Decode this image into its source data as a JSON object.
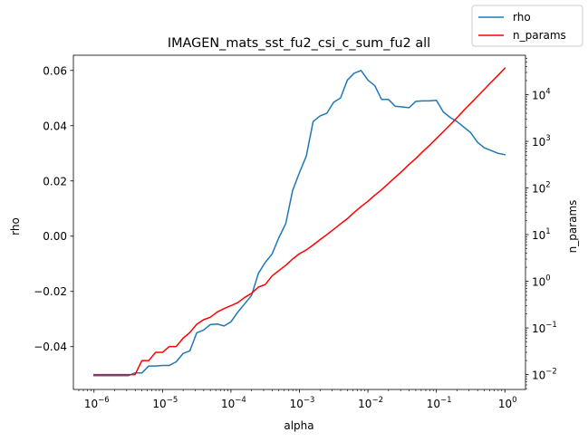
{
  "chart_data": {
    "type": "line",
    "title": "IMAGEN_mats_sst_fu2_csi_c_sum_fu2 all",
    "xlabel": "alpha",
    "ylabel_left": "rho",
    "ylabel_right": "n_params",
    "xscale": "log",
    "xlim": [
      5e-07,
      2
    ],
    "ylim_left": [
      -0.0555,
      0.0655
    ],
    "yscale_right": "log",
    "ylim_right": [
      0.0048,
      70000
    ],
    "legend_position": "top-right",
    "grid": false,
    "x_ticks": [
      {
        "value": 1e-06,
        "base": "10",
        "exp": "−6"
      },
      {
        "value": 1e-05,
        "base": "10",
        "exp": "−5"
      },
      {
        "value": 0.0001,
        "base": "10",
        "exp": "−4"
      },
      {
        "value": 0.001,
        "base": "10",
        "exp": "−3"
      },
      {
        "value": 0.01,
        "base": "10",
        "exp": "−2"
      },
      {
        "value": 0.1,
        "base": "10",
        "exp": "−1"
      },
      {
        "value": 1,
        "base": "10",
        "exp": "0"
      }
    ],
    "y_left_ticks": [
      {
        "value": -0.04,
        "label": "−0.04"
      },
      {
        "value": -0.02,
        "label": "−0.02"
      },
      {
        "value": 0.0,
        "label": "0.00"
      },
      {
        "value": 0.02,
        "label": "0.02"
      },
      {
        "value": 0.04,
        "label": "0.04"
      },
      {
        "value": 0.06,
        "label": "0.06"
      }
    ],
    "y_right_ticks": [
      {
        "value": 0.01,
        "base": "10",
        "exp": "−2"
      },
      {
        "value": 0.1,
        "base": "10",
        "exp": "−1"
      },
      {
        "value": 1,
        "base": "10",
        "exp": "0"
      },
      {
        "value": 10,
        "base": "10",
        "exp": "1"
      },
      {
        "value": 100,
        "base": "10",
        "exp": "2"
      },
      {
        "value": 1000,
        "base": "10",
        "exp": "3"
      },
      {
        "value": 10000,
        "base": "10",
        "exp": "4"
      }
    ],
    "x_log10": [
      -6.0,
      -5.9,
      -5.8,
      -5.7,
      -5.6,
      -5.5,
      -5.4,
      -5.3,
      -5.2,
      -5.1,
      -5.0,
      -4.9,
      -4.8,
      -4.7,
      -4.6,
      -4.5,
      -4.4,
      -4.3,
      -4.2,
      -4.1,
      -4.0,
      -3.9,
      -3.8,
      -3.7,
      -3.6,
      -3.5,
      -3.4,
      -3.3,
      -3.2,
      -3.1,
      -3.0,
      -2.9,
      -2.8,
      -2.7,
      -2.6,
      -2.5,
      -2.4,
      -2.3,
      -2.2,
      -2.1,
      -2.0,
      -1.9,
      -1.8,
      -1.7,
      -1.6,
      -1.5,
      -1.4,
      -1.3,
      -1.2,
      -1.1,
      -1.0,
      -0.9,
      -0.8,
      -0.7,
      -0.6,
      -0.5,
      -0.4,
      -0.3,
      -0.2,
      -0.1,
      0.0
    ],
    "series": [
      {
        "name": "rho",
        "axis": "left",
        "color": "#1f77b4",
        "values": [
          -0.0505,
          -0.0505,
          -0.0505,
          -0.0505,
          -0.0505,
          -0.0505,
          -0.0495,
          -0.0495,
          -0.047,
          -0.047,
          -0.0468,
          -0.0468,
          -0.0455,
          -0.0425,
          -0.0415,
          -0.035,
          -0.034,
          -0.032,
          -0.0318,
          -0.0325,
          -0.031,
          -0.0275,
          -0.0245,
          -0.0215,
          -0.0135,
          -0.0095,
          -0.0065,
          -0.0005,
          0.0045,
          0.0165,
          0.023,
          0.029,
          0.0415,
          0.0435,
          0.0445,
          0.0485,
          0.05,
          0.0565,
          0.059,
          0.06,
          0.0565,
          0.0545,
          0.0495,
          0.0495,
          0.047,
          0.0468,
          0.0465,
          0.0488,
          0.049,
          0.049,
          0.0492,
          0.045,
          0.043,
          0.0415,
          0.0395,
          0.0375,
          0.034,
          0.032,
          0.031,
          0.03,
          0.0295
        ]
      },
      {
        "name": "n_params",
        "axis": "right",
        "color": "#ff0000",
        "values": [
          0.01,
          0.01,
          0.01,
          0.01,
          0.01,
          0.01,
          0.01,
          0.02,
          0.02,
          0.03,
          0.03,
          0.04,
          0.04,
          0.06,
          0.08,
          0.12,
          0.15,
          0.17,
          0.22,
          0.26,
          0.3,
          0.35,
          0.45,
          0.55,
          0.75,
          0.85,
          1.3,
          1.7,
          2.2,
          3.0,
          3.9,
          4.7,
          6.0,
          7.8,
          10.0,
          13.0,
          17.0,
          22.0,
          30.0,
          40.0,
          52.0,
          70.0,
          92.0,
          125.0,
          170.0,
          230.0,
          320.0,
          430.0,
          600.0,
          820.0,
          1150.0,
          1600.0,
          2250.0,
          3200.0,
          4600.0,
          6500.0,
          9200.0,
          13000.0,
          18500.0,
          26000.0,
          37000.0
        ]
      }
    ]
  }
}
